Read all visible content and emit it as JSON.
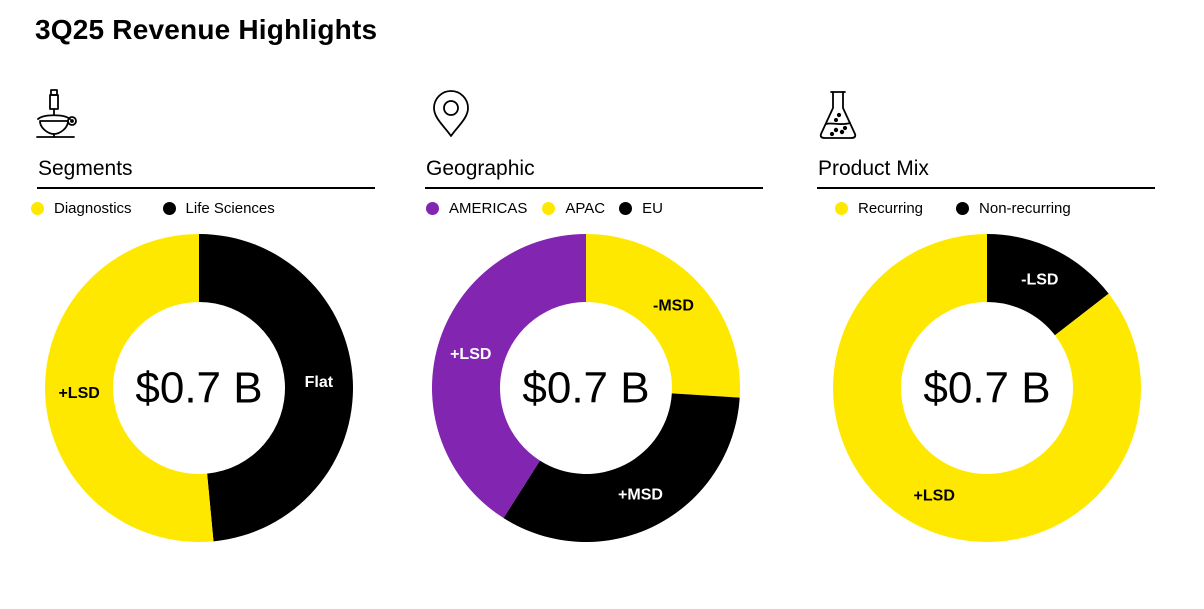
{
  "page": {
    "title": "3Q25 Revenue Highlights"
  },
  "colors": {
    "yellow": "#FFE800",
    "black": "#000000",
    "purple": "#8225B0"
  },
  "panels": [
    {
      "title": "Segments",
      "icon": "microscope-icon",
      "legend": [
        "Diagnostics",
        "Life Sciences"
      ],
      "center": "$0.7 B",
      "slices": [
        {
          "name": "Life Sciences",
          "color": "#000000",
          "share": 0.485,
          "label": "Flat",
          "label_color": "#ffffff"
        },
        {
          "name": "Diagnostics",
          "color": "#FFE800",
          "share": 0.515,
          "label": "+LSD",
          "label_color": "#000000"
        }
      ]
    },
    {
      "title": "Geographic",
      "icon": "location-pin-icon",
      "legend": [
        "AMERICAS",
        "APAC",
        "EU"
      ],
      "center": "$0.7 B",
      "slices": [
        {
          "name": "APAC",
          "color": "#FFE800",
          "share": 0.26,
          "label": "-MSD",
          "label_color": "#000000"
        },
        {
          "name": "EU",
          "color": "#000000",
          "share": 0.33,
          "label": "+MSD",
          "label_color": "#ffffff"
        },
        {
          "name": "AMERICAS",
          "color": "#8225B0",
          "share": 0.41,
          "label": "+LSD",
          "label_color": "#ffffff"
        }
      ]
    },
    {
      "title": "Product Mix",
      "icon": "flask-icon",
      "legend": [
        "Recurring",
        "Non-recurring"
      ],
      "center": "$0.7 B",
      "slices": [
        {
          "name": "Non-recurring",
          "color": "#000000",
          "share": 0.145,
          "label": "-LSD",
          "label_color": "#ffffff"
        },
        {
          "name": "Recurring",
          "color": "#FFE800",
          "share": 0.855,
          "label": "+LSD",
          "label_color": "#000000"
        }
      ]
    }
  ],
  "chart_data": [
    {
      "type": "pie",
      "title": "Segments",
      "categories": [
        "Life Sciences",
        "Diagnostics"
      ],
      "values": [
        0.485,
        0.515
      ],
      "data_labels": [
        "Flat",
        "+LSD"
      ],
      "center_label": "$0.7 B",
      "legend": "top-left"
    },
    {
      "type": "pie",
      "title": "Geographic",
      "categories": [
        "APAC",
        "EU",
        "AMERICAS"
      ],
      "values": [
        0.26,
        0.33,
        0.41
      ],
      "data_labels": [
        "-MSD",
        "+MSD",
        "+LSD"
      ],
      "center_label": "$0.7 B",
      "legend": "top-left"
    },
    {
      "type": "pie",
      "title": "Product Mix",
      "categories": [
        "Non-recurring",
        "Recurring"
      ],
      "values": [
        0.145,
        0.855
      ],
      "data_labels": [
        "-LSD",
        "+LSD"
      ],
      "center_label": "$0.7 B",
      "legend": "top-left"
    }
  ]
}
